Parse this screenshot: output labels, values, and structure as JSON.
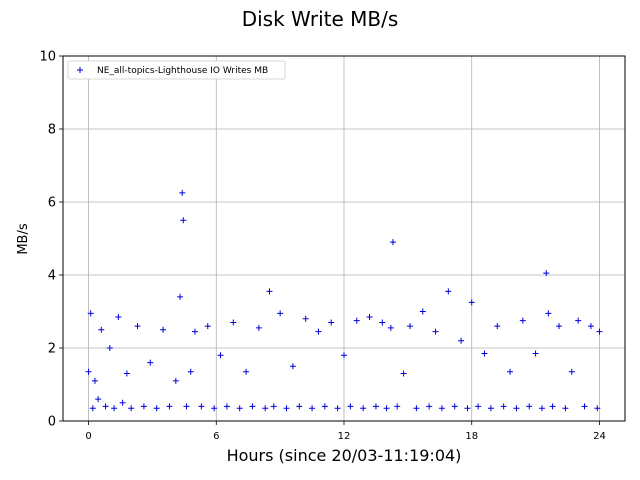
{
  "chart_data": {
    "type": "scatter",
    "title": "Disk Write MB/s",
    "xlabel": "Hours (since 20/03-11:19:04)",
    "ylabel": "MB/s",
    "xlim": [
      -1.2,
      25.2
    ],
    "ylim": [
      0,
      10
    ],
    "xticks": [
      0,
      6,
      12,
      18,
      24
    ],
    "yticks": [
      0,
      2,
      4,
      6,
      8,
      10
    ],
    "grid": true,
    "legend_position": "top-left",
    "marker": "+",
    "series": [
      {
        "name": "NE_all-topics-Lighthouse IO Writes MB",
        "color": "#0000dd",
        "x": [
          0.0,
          0.1,
          0.2,
          0.3,
          0.45,
          0.6,
          0.8,
          1.0,
          1.2,
          1.4,
          1.6,
          1.8,
          2.0,
          2.3,
          2.6,
          2.9,
          3.2,
          3.5,
          3.8,
          4.1,
          4.3,
          4.4,
          4.45,
          4.6,
          4.8,
          5.0,
          5.3,
          5.6,
          5.9,
          6.2,
          6.5,
          6.8,
          7.1,
          7.4,
          7.7,
          8.0,
          8.3,
          8.5,
          8.7,
          9.0,
          9.3,
          9.6,
          9.9,
          10.2,
          10.5,
          10.8,
          11.1,
          11.4,
          11.7,
          12.0,
          12.3,
          12.6,
          12.9,
          13.2,
          13.5,
          13.8,
          14.0,
          14.2,
          14.3,
          14.5,
          14.8,
          15.1,
          15.4,
          15.7,
          16.0,
          16.3,
          16.6,
          16.9,
          17.2,
          17.5,
          17.8,
          18.0,
          18.3,
          18.6,
          18.9,
          19.2,
          19.5,
          19.8,
          20.1,
          20.4,
          20.7,
          21.0,
          21.3,
          21.5,
          21.6,
          21.8,
          22.1,
          22.4,
          22.7,
          23.0,
          23.3,
          23.6,
          23.9,
          24.0
        ],
        "y": [
          1.35,
          2.95,
          0.35,
          1.1,
          0.6,
          2.5,
          0.4,
          2.0,
          0.35,
          2.85,
          0.5,
          1.3,
          0.35,
          2.6,
          0.4,
          1.6,
          0.35,
          2.5,
          0.4,
          1.1,
          3.4,
          6.25,
          5.5,
          0.4,
          1.35,
          2.45,
          0.4,
          2.6,
          0.35,
          1.8,
          0.4,
          2.7,
          0.35,
          1.35,
          0.4,
          2.55,
          0.35,
          3.55,
          0.4,
          2.95,
          0.35,
          1.5,
          0.4,
          2.8,
          0.35,
          2.45,
          0.4,
          2.7,
          0.35,
          1.8,
          0.4,
          2.75,
          0.35,
          2.85,
          0.4,
          2.7,
          0.35,
          2.55,
          4.9,
          0.4,
          1.3,
          2.6,
          0.35,
          3.0,
          0.4,
          2.45,
          0.35,
          3.55,
          0.4,
          2.2,
          0.35,
          3.25,
          0.4,
          1.85,
          0.35,
          2.6,
          0.4,
          1.35,
          0.35,
          2.75,
          0.4,
          1.85,
          0.35,
          4.05,
          2.95,
          0.4,
          2.6,
          0.35,
          1.35,
          2.75,
          0.4,
          2.6,
          0.35,
          2.45
        ]
      }
    ]
  }
}
